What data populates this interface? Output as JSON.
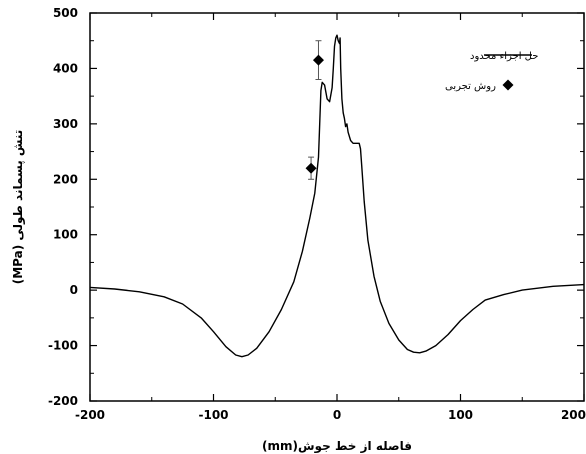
{
  "chart_data": {
    "type": "line",
    "xlabel": "فاصله از خط جوش(mm)",
    "ylabel": "تنش پسماند طولی (MPa)",
    "xlim": [
      -200,
      200
    ],
    "ylim": [
      -200,
      500
    ],
    "x_ticks": [
      -200,
      -100,
      0,
      100,
      200
    ],
    "y_ticks": [
      -200,
      -100,
      0,
      100,
      200,
      300,
      400,
      500
    ],
    "x_tick_labels": [
      "-200",
      "-100",
      "0",
      "100",
      "200"
    ],
    "y_tick_labels": [
      "-200",
      "-100",
      "0",
      "100",
      "200",
      "300",
      "400",
      "500"
    ],
    "legend_position": "top-right",
    "series": [
      {
        "name": "حل اجزاء محدود",
        "kind": "line",
        "color": "#000000",
        "points": [
          [
            -200,
            5
          ],
          [
            -180,
            2
          ],
          [
            -160,
            -3
          ],
          [
            -140,
            -12
          ],
          [
            -125,
            -25
          ],
          [
            -110,
            -50
          ],
          [
            -100,
            -75
          ],
          [
            -90,
            -102
          ],
          [
            -82,
            -117
          ],
          [
            -77,
            -120
          ],
          [
            -72,
            -117
          ],
          [
            -65,
            -105
          ],
          [
            -55,
            -75
          ],
          [
            -45,
            -35
          ],
          [
            -35,
            15
          ],
          [
            -28,
            70
          ],
          [
            -22,
            130
          ],
          [
            -18,
            175
          ],
          [
            -15,
            240
          ],
          [
            -14,
            300
          ],
          [
            -13,
            360
          ],
          [
            -12,
            375
          ],
          [
            -10,
            370
          ],
          [
            -8,
            345
          ],
          [
            -6,
            340
          ],
          [
            -4,
            365
          ],
          [
            -3,
            400
          ],
          [
            -2,
            440
          ],
          [
            -1,
            455
          ],
          [
            0,
            460
          ],
          [
            1,
            450
          ],
          [
            2,
            445
          ],
          [
            2.5,
            455
          ],
          [
            3,
            400
          ],
          [
            4,
            345
          ],
          [
            5,
            320
          ],
          [
            6,
            310
          ],
          [
            7,
            295
          ],
          [
            8,
            300
          ],
          [
            9,
            285
          ],
          [
            11,
            270
          ],
          [
            13,
            265
          ],
          [
            16,
            265
          ],
          [
            18,
            265
          ],
          [
            19,
            255
          ],
          [
            20,
            225
          ],
          [
            22,
            160
          ],
          [
            25,
            90
          ],
          [
            30,
            25
          ],
          [
            35,
            -20
          ],
          [
            42,
            -60
          ],
          [
            50,
            -90
          ],
          [
            57,
            -107
          ],
          [
            62,
            -112
          ],
          [
            67,
            -113
          ],
          [
            72,
            -110
          ],
          [
            80,
            -100
          ],
          [
            90,
            -80
          ],
          [
            100,
            -55
          ],
          [
            110,
            -35
          ],
          [
            120,
            -18
          ],
          [
            135,
            -8
          ],
          [
            150,
            0
          ],
          [
            175,
            7
          ],
          [
            200,
            10
          ]
        ]
      },
      {
        "name": "روش تجربی",
        "kind": "scatter",
        "marker": "diamond",
        "color": "#000000",
        "points": [
          [
            -21,
            220
          ],
          [
            -15,
            415
          ]
        ],
        "error": [
          20,
          35
        ]
      }
    ]
  }
}
